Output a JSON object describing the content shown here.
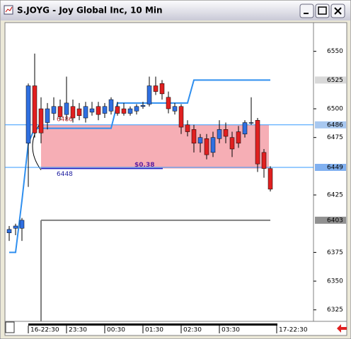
{
  "chart_data": {
    "type": "candlestick",
    "title": "S.JOYG - Joy Global Inc, 10 Min",
    "categories": [
      null,
      null,
      null,
      "16-22:30",
      null,
      null,
      null,
      null,
      null,
      "23:30",
      null,
      null,
      null,
      null,
      null,
      "00:30",
      null,
      null,
      null,
      null,
      null,
      "01:30",
      null,
      null,
      null,
      null,
      null,
      "02:30",
      null,
      null,
      null,
      null,
      null,
      "03:30",
      null,
      null,
      null,
      null,
      null,
      null,
      null,
      null,
      "17-22:30"
    ],
    "open": [
      6392,
      6396,
      6396,
      6470,
      6520,
      6500,
      6488,
      6496,
      6502,
      6495,
      6502,
      6500,
      6492,
      6497,
      6502,
      6496,
      6498,
      6502,
      6500,
      6496,
      6498,
      6502,
      6504,
      6520,
      6522,
      6510,
      6498,
      6502,
      6486,
      6482,
      6470,
      6474,
      6462,
      6474,
      6482,
      6475,
      6480,
      6478,
      6488,
      6490,
      6462,
      6448,
      null
    ],
    "high": [
      6398,
      6400,
      6405,
      6522,
      6548,
      6510,
      6505,
      6510,
      6508,
      6528,
      6508,
      6505,
      6506,
      6506,
      6506,
      6505,
      6510,
      6506,
      6505,
      6502,
      6504,
      6506,
      6528,
      6528,
      6525,
      6515,
      6505,
      6504,
      6490,
      6486,
      6478,
      6478,
      6480,
      6490,
      6488,
      6480,
      6485,
      6490,
      6510,
      6492,
      6465,
      6450,
      null
    ],
    "low": [
      6385,
      6390,
      6385,
      6432,
      6475,
      6470,
      6482,
      6490,
      6490,
      6490,
      6488,
      6490,
      6488,
      6494,
      6490,
      6492,
      6495,
      6494,
      6494,
      6494,
      6495,
      6500,
      6502,
      6512,
      6508,
      6496,
      6495,
      6478,
      6476,
      6462,
      6462,
      6456,
      6458,
      6470,
      6470,
      6458,
      6466,
      6475,
      6486,
      6445,
      6440,
      6428,
      null
    ],
    "close": [
      6395,
      6398,
      6403,
      6520,
      6479,
      6479,
      6500,
      6502,
      6493,
      6505,
      6492,
      6494,
      6502,
      6500,
      6495,
      6502,
      6508,
      6496,
      6496,
      6500,
      6502,
      6503,
      6520,
      6515,
      6513,
      6500,
      6502,
      6484,
      6480,
      6470,
      6475,
      6460,
      6475,
      6482,
      6476,
      6465,
      6470,
      6488,
      6488,
      6452,
      6448,
      6430,
      null
    ],
    "up_color": "#2f6fe0",
    "down_color": "#e02020",
    "lines": [
      {
        "color": "#2f8fef",
        "values": [
          6375,
          6375,
          6420,
          6470,
          6483,
          6483,
          6483,
          6483,
          6483,
          6483,
          6483,
          6483,
          6483,
          6483,
          6483,
          6483,
          6483,
          6505,
          6505,
          6505,
          6505,
          6505,
          6505,
          6505,
          6505,
          6505,
          6505,
          6505,
          6505,
          6525,
          6525,
          6525,
          6525,
          6525,
          6525,
          6525,
          6525,
          6525,
          6525,
          6525,
          6525,
          6525,
          null
        ]
      },
      {
        "color": "#808080",
        "values": [
          null,
          null,
          null,
          null,
          null,
          6403,
          6403,
          6403,
          6403,
          6403,
          6403,
          6403,
          6403,
          6403,
          6403,
          6403,
          6403,
          6403,
          6403,
          6403,
          6403,
          6403,
          6403,
          6403,
          6403,
          6403,
          6403,
          6403,
          6403,
          6403,
          6403,
          6403,
          6403,
          6403,
          6403,
          6403,
          6403,
          6403,
          6403,
          6403,
          6403,
          6403,
          null
        ]
      }
    ],
    "levels": [
      {
        "value": 6525,
        "color": "#d8d8d8",
        "line": false
      },
      {
        "value": 6486,
        "color": "#a8c8f0",
        "line": true
      },
      {
        "value": 6449,
        "color": "#80b0f0",
        "line": true
      },
      {
        "value": 6403,
        "color": "#909090",
        "line": false
      }
    ],
    "zone": {
      "top": 6486,
      "bottom": 6448,
      "color": "#f4a0a8",
      "annotation": "$0.38"
    },
    "ylim": [
      6315,
      6575
    ],
    "yticks": [
      6325,
      6350,
      6375,
      6425,
      6475,
      6500,
      6550
    ]
  }
}
